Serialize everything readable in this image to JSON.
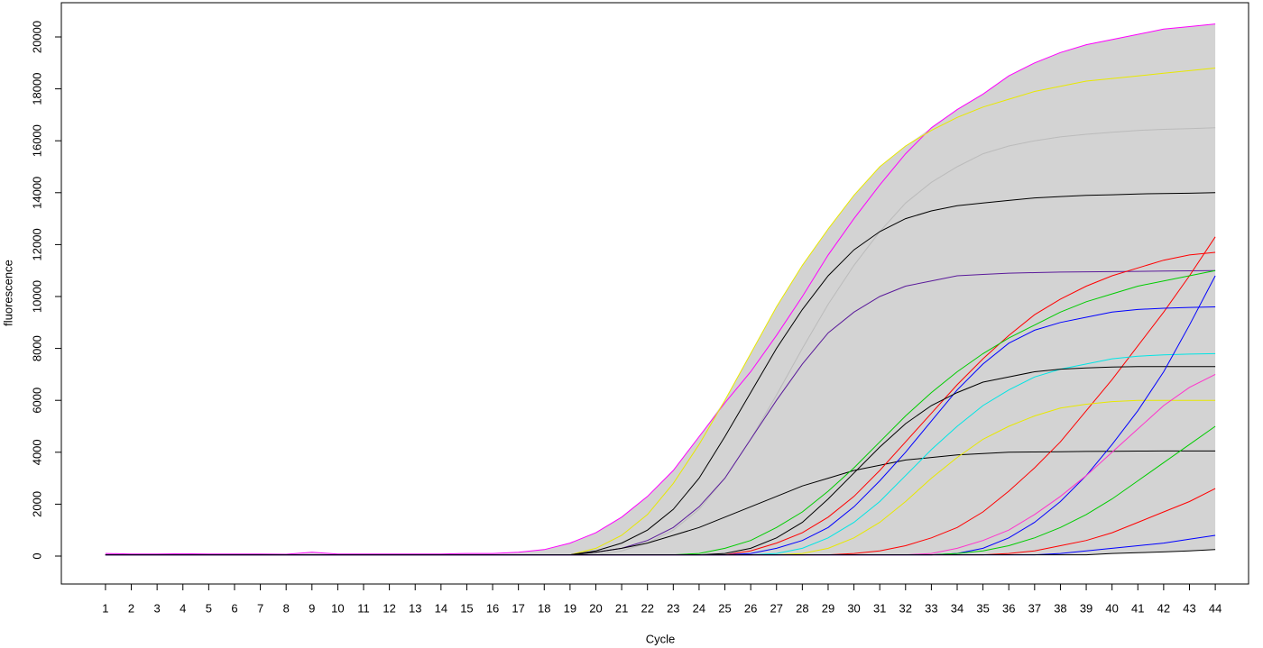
{
  "chart_data": {
    "type": "line",
    "x_label": "Cycle",
    "y_label": "fluorescence",
    "x": [
      1,
      2,
      3,
      4,
      5,
      6,
      7,
      8,
      9,
      10,
      11,
      12,
      13,
      14,
      15,
      16,
      17,
      18,
      19,
      20,
      21,
      22,
      23,
      24,
      25,
      26,
      27,
      28,
      29,
      30,
      31,
      32,
      33,
      34,
      35,
      36,
      37,
      38,
      39,
      40,
      41,
      42,
      43,
      44
    ],
    "xlim": [
      -0.71,
      45.29
    ],
    "xticks": [
      1,
      2,
      3,
      4,
      5,
      6,
      7,
      8,
      9,
      10,
      11,
      12,
      13,
      14,
      15,
      16,
      17,
      18,
      19,
      20,
      21,
      22,
      23,
      24,
      25,
      26,
      27,
      28,
      29,
      30,
      31,
      32,
      33,
      34,
      35,
      36,
      37,
      38,
      39,
      40,
      41,
      42,
      43,
      44
    ],
    "ylim": [
      -1076,
      21319
    ],
    "yticks": [
      0,
      2000,
      4000,
      6000,
      8000,
      10000,
      12000,
      14000,
      16000,
      18000,
      20000
    ],
    "envelope_color": "#d3d3d3",
    "series": [
      {
        "color": "#ff00ff",
        "values": [
          100,
          80,
          80,
          90,
          80,
          80,
          80,
          70,
          150,
          80,
          80,
          80,
          80,
          80,
          100,
          100,
          150,
          250,
          500,
          900,
          1500,
          2300,
          3300,
          4600,
          5900,
          7100,
          8500,
          10000,
          11600,
          13000,
          14300,
          15500,
          16500,
          17200,
          17800,
          18500,
          19000,
          19400,
          19700,
          19900,
          20100,
          20300,
          20400,
          20500
        ]
      },
      {
        "color": "#e8e800",
        "values": [
          50,
          50,
          50,
          50,
          50,
          50,
          50,
          50,
          50,
          50,
          50,
          50,
          50,
          50,
          50,
          50,
          50,
          50,
          50,
          300,
          800,
          1600,
          2800,
          4300,
          6000,
          7800,
          9600,
          11200,
          12600,
          13900,
          15000,
          15800,
          16400,
          16900,
          17300,
          17600,
          17900,
          18100,
          18300,
          18400,
          18500,
          18600,
          18700,
          18800
        ]
      },
      {
        "color": "#bbbbbb",
        "values": [
          50,
          50,
          50,
          50,
          50,
          50,
          50,
          50,
          50,
          50,
          50,
          50,
          50,
          50,
          50,
          50,
          50,
          50,
          50,
          50,
          200,
          500,
          1000,
          1800,
          3000,
          4500,
          6200,
          8000,
          9700,
          11200,
          12500,
          13600,
          14400,
          15000,
          15500,
          15800,
          16000,
          16150,
          16250,
          16330,
          16400,
          16440,
          16470,
          16500
        ]
      },
      {
        "color": "#000000",
        "values": [
          50,
          50,
          50,
          50,
          50,
          50,
          50,
          50,
          50,
          50,
          50,
          50,
          50,
          50,
          50,
          50,
          50,
          50,
          50,
          200,
          500,
          1000,
          1800,
          3000,
          4600,
          6300,
          8000,
          9500,
          10800,
          11800,
          12500,
          13000,
          13300,
          13500,
          13600,
          13700,
          13800,
          13850,
          13900,
          13920,
          13950,
          13970,
          13980,
          14000
        ]
      },
      {
        "color": "#5a1a9a",
        "values": [
          50,
          50,
          50,
          50,
          50,
          50,
          50,
          50,
          50,
          50,
          50,
          50,
          50,
          50,
          50,
          50,
          50,
          50,
          50,
          150,
          300,
          600,
          1100,
          1900,
          3000,
          4500,
          6000,
          7400,
          8600,
          9400,
          10000,
          10400,
          10600,
          10800,
          10850,
          10900,
          10920,
          10940,
          10950,
          10960,
          10970,
          10980,
          10990,
          11000
        ]
      },
      {
        "color": "#000000",
        "values": [
          50,
          50,
          50,
          50,
          50,
          50,
          50,
          50,
          50,
          50,
          50,
          50,
          50,
          50,
          50,
          50,
          50,
          50,
          50,
          150,
          300,
          500,
          800,
          1100,
          1500,
          1900,
          2300,
          2700,
          3000,
          3300,
          3500,
          3700,
          3800,
          3900,
          3950,
          4000,
          4010,
          4020,
          4030,
          4040,
          4045,
          4050,
          4050,
          4050
        ]
      },
      {
        "color": "#ff0000",
        "values": [
          50,
          50,
          50,
          50,
          50,
          50,
          50,
          50,
          50,
          50,
          50,
          50,
          50,
          50,
          50,
          50,
          50,
          50,
          50,
          50,
          50,
          50,
          50,
          50,
          50,
          50,
          50,
          50,
          50,
          100,
          200,
          400,
          700,
          1100,
          1700,
          2500,
          3400,
          4400,
          5600,
          6800,
          8100,
          9400,
          10800,
          12300
        ]
      },
      {
        "color": "#ff0000",
        "values": [
          50,
          50,
          50,
          50,
          50,
          50,
          50,
          50,
          50,
          50,
          50,
          50,
          50,
          50,
          50,
          50,
          50,
          50,
          50,
          50,
          50,
          50,
          50,
          50,
          50,
          200,
          500,
          900,
          1500,
          2300,
          3300,
          4400,
          5500,
          6600,
          7600,
          8500,
          9300,
          9900,
          10400,
          10800,
          11100,
          11400,
          11600,
          11700
        ]
      },
      {
        "color": "#00cc00",
        "values": [
          50,
          50,
          50,
          50,
          50,
          50,
          50,
          50,
          50,
          50,
          50,
          50,
          50,
          50,
          50,
          50,
          50,
          50,
          50,
          50,
          50,
          50,
          50,
          100,
          300,
          600,
          1100,
          1700,
          2500,
          3400,
          4400,
          5400,
          6300,
          7100,
          7800,
          8400,
          8900,
          9400,
          9800,
          10100,
          10400,
          10600,
          10800,
          11000
        ]
      },
      {
        "color": "#0000ff",
        "values": [
          50,
          50,
          50,
          50,
          50,
          50,
          50,
          50,
          50,
          50,
          50,
          50,
          50,
          50,
          50,
          50,
          50,
          50,
          50,
          50,
          50,
          50,
          50,
          50,
          50,
          100,
          300,
          600,
          1100,
          1900,
          2900,
          4000,
          5200,
          6400,
          7400,
          8200,
          8700,
          9000,
          9200,
          9400,
          9500,
          9550,
          9580,
          9600
        ]
      },
      {
        "color": "#00e5e5",
        "values": [
          50,
          50,
          50,
          50,
          50,
          50,
          50,
          50,
          50,
          50,
          50,
          50,
          50,
          50,
          50,
          50,
          50,
          50,
          50,
          50,
          50,
          50,
          50,
          50,
          50,
          50,
          100,
          300,
          700,
          1300,
          2100,
          3100,
          4100,
          5000,
          5800,
          6400,
          6900,
          7200,
          7400,
          7600,
          7700,
          7750,
          7780,
          7800
        ]
      },
      {
        "color": "#000000",
        "values": [
          50,
          50,
          50,
          50,
          50,
          50,
          50,
          50,
          50,
          50,
          50,
          50,
          50,
          50,
          50,
          50,
          50,
          50,
          50,
          50,
          50,
          50,
          50,
          50,
          100,
          300,
          700,
          1300,
          2200,
          3200,
          4200,
          5100,
          5800,
          6300,
          6700,
          6900,
          7100,
          7200,
          7250,
          7280,
          7300,
          7300,
          7300,
          7300
        ]
      },
      {
        "color": "#e8e800",
        "values": [
          50,
          50,
          50,
          50,
          50,
          50,
          50,
          50,
          50,
          50,
          50,
          50,
          50,
          50,
          50,
          50,
          50,
          50,
          50,
          50,
          50,
          50,
          50,
          50,
          50,
          50,
          50,
          100,
          300,
          700,
          1300,
          2100,
          3000,
          3800,
          4500,
          5000,
          5400,
          5700,
          5850,
          5950,
          6000,
          6000,
          6000,
          6000
        ]
      },
      {
        "color": "#0000ff",
        "values": [
          50,
          50,
          50,
          50,
          50,
          50,
          50,
          50,
          50,
          50,
          50,
          50,
          50,
          50,
          50,
          50,
          50,
          50,
          50,
          50,
          50,
          50,
          50,
          50,
          50,
          50,
          50,
          50,
          50,
          50,
          50,
          50,
          50,
          100,
          300,
          700,
          1300,
          2100,
          3100,
          4300,
          5600,
          7100,
          8900,
          10800
        ]
      },
      {
        "color": "#00cc00",
        "values": [
          50,
          50,
          50,
          50,
          50,
          50,
          50,
          50,
          50,
          50,
          50,
          50,
          50,
          50,
          50,
          50,
          50,
          50,
          50,
          50,
          50,
          50,
          50,
          50,
          50,
          50,
          50,
          50,
          50,
          50,
          50,
          50,
          50,
          100,
          200,
          400,
          700,
          1100,
          1600,
          2200,
          2900,
          3600,
          4300,
          5000
        ]
      },
      {
        "color": "#ff0000",
        "values": [
          50,
          50,
          50,
          50,
          50,
          50,
          50,
          50,
          50,
          50,
          50,
          50,
          50,
          50,
          50,
          50,
          50,
          50,
          50,
          50,
          50,
          50,
          50,
          50,
          50,
          50,
          50,
          50,
          50,
          50,
          50,
          50,
          50,
          50,
          50,
          100,
          200,
          400,
          600,
          900,
          1300,
          1700,
          2100,
          2600
        ]
      },
      {
        "color": "#ff33cc",
        "values": [
          50,
          50,
          50,
          50,
          50,
          50,
          50,
          50,
          50,
          50,
          50,
          50,
          50,
          50,
          50,
          50,
          50,
          50,
          50,
          50,
          50,
          50,
          50,
          50,
          50,
          50,
          50,
          50,
          50,
          50,
          50,
          50,
          100,
          300,
          600,
          1000,
          1600,
          2300,
          3100,
          4000,
          4900,
          5800,
          6500,
          7000
        ]
      },
      {
        "color": "#0000ff",
        "values": [
          50,
          50,
          50,
          50,
          50,
          50,
          50,
          50,
          50,
          50,
          50,
          50,
          50,
          50,
          50,
          50,
          50,
          50,
          50,
          50,
          50,
          50,
          50,
          50,
          50,
          50,
          50,
          50,
          50,
          50,
          50,
          50,
          50,
          50,
          50,
          50,
          50,
          100,
          200,
          300,
          400,
          500,
          650,
          800
        ]
      },
      {
        "color": "#000000",
        "values": [
          50,
          50,
          50,
          50,
          50,
          50,
          50,
          50,
          50,
          50,
          50,
          50,
          50,
          50,
          50,
          50,
          50,
          50,
          50,
          50,
          50,
          50,
          50,
          50,
          50,
          50,
          50,
          50,
          50,
          50,
          50,
          50,
          50,
          50,
          50,
          50,
          50,
          50,
          50,
          100,
          130,
          160,
          200,
          250
        ]
      }
    ]
  }
}
